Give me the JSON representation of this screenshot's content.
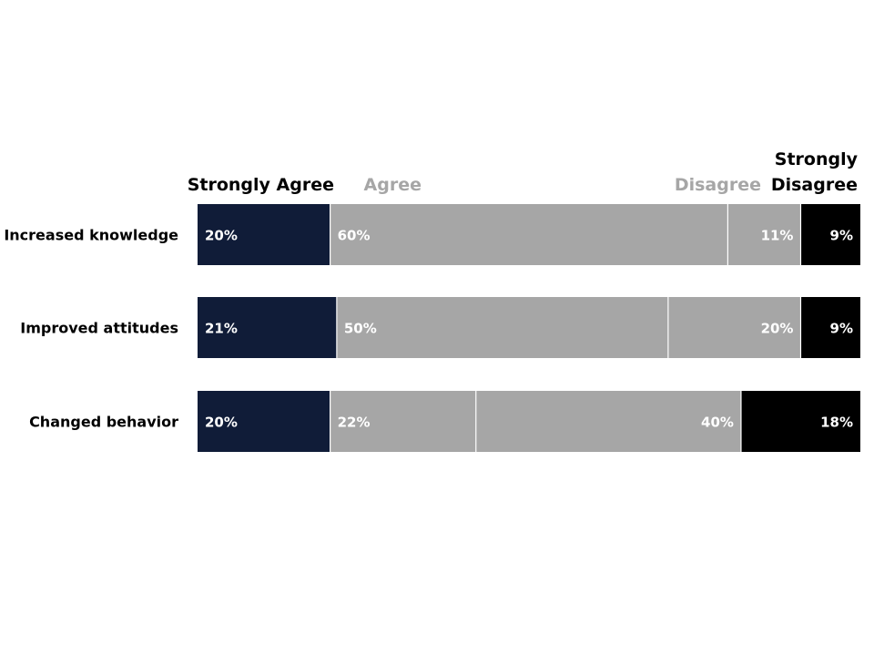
{
  "chart_data": {
    "type": "bar",
    "orientation": "horizontal",
    "stacked": true,
    "categories": [
      "Increased knowledge",
      "Improved attitudes",
      "Changed behavior"
    ],
    "series": [
      {
        "name": "Strongly Agree",
        "values": [
          20,
          21,
          20
        ],
        "color": "#101c38",
        "label_color": "#ffffff"
      },
      {
        "name": "Agree",
        "values": [
          60,
          50,
          22
        ],
        "color": "#a6a6a6",
        "label_color": "#ffffff"
      },
      {
        "name": "Disagree",
        "values": [
          11,
          20,
          40
        ],
        "color": "#a6a6a6",
        "label_color": "#ffffff"
      },
      {
        "name": "Strongly Disagree",
        "values": [
          9,
          9,
          18
        ],
        "color": "#000000",
        "label_color": "#ffffff"
      }
    ],
    "data_labels": [
      [
        "20%",
        "21%",
        "20%"
      ],
      [
        "60%",
        "50%",
        "22%"
      ],
      [
        "11%",
        "20%",
        "40%"
      ],
      [
        "9%",
        "9%",
        "18%"
      ]
    ],
    "legend_entries": [
      {
        "lines": [
          "Strongly Agree"
        ],
        "color": "#000000"
      },
      {
        "lines": [
          "Agree"
        ],
        "color": "#a6a6a6"
      },
      {
        "lines": [
          "Disagree"
        ],
        "color": "#a6a6a6"
      },
      {
        "lines": [
          "Strongly",
          "Disagree"
        ],
        "color": "#000000"
      }
    ],
    "legend_position": "top",
    "grid": false,
    "xlim": [
      0,
      100
    ]
  }
}
